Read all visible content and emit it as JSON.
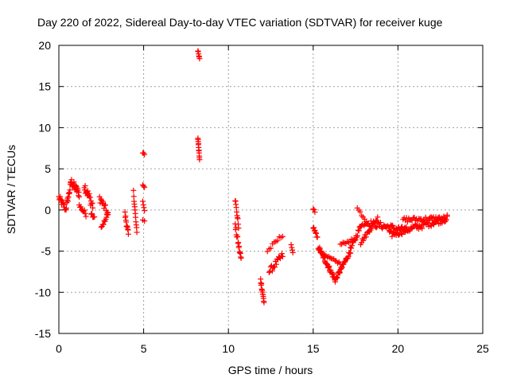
{
  "chart_data": {
    "type": "scatter",
    "title": "Day 220 of 2022, Sidereal Day-to-day VTEC variation (SDTVAR) for receiver kuge",
    "xlabel": "GPS time / hours",
    "ylabel": "SDTVAR / TECUs",
    "xlim": [
      0,
      25
    ],
    "ylim": [
      -15,
      20
    ],
    "xticks": [
      0,
      5,
      10,
      15,
      20,
      25
    ],
    "yticks": [
      -15,
      -10,
      -5,
      0,
      5,
      10,
      15,
      20
    ],
    "grid": true,
    "marker": "plus",
    "color": "#ff0000",
    "segments": [
      {
        "x0": 0.0,
        "x1": 0.35,
        "y0": 1.5,
        "y1": 0.3,
        "spread": 0.8,
        "n": 14
      },
      {
        "x0": 0.4,
        "x1": 0.7,
        "y0": 0.0,
        "y1": 3.0,
        "spread": 0.8,
        "n": 14
      },
      {
        "x0": 0.7,
        "x1": 1.2,
        "y0": 3.5,
        "y1": 2.0,
        "spread": 1.0,
        "n": 22
      },
      {
        "x0": 1.2,
        "x1": 1.6,
        "y0": 0.5,
        "y1": -0.5,
        "spread": 0.6,
        "n": 10
      },
      {
        "x0": 1.5,
        "x1": 2.0,
        "y0": 3.0,
        "y1": 0.5,
        "spread": 1.2,
        "n": 20
      },
      {
        "x0": 1.9,
        "x1": 2.1,
        "y0": -0.5,
        "y1": -1.0,
        "spread": 0.4,
        "n": 5
      },
      {
        "x0": 2.4,
        "x1": 2.9,
        "y0": 1.5,
        "y1": -0.5,
        "spread": 1.0,
        "n": 14
      },
      {
        "x0": 2.5,
        "x1": 2.9,
        "y0": -2.2,
        "y1": -0.5,
        "spread": 0.3,
        "n": 10
      },
      {
        "x0": 3.9,
        "x1": 4.1,
        "y0": -0.5,
        "y1": -3.0,
        "spread": 0.7,
        "n": 12
      },
      {
        "x0": 4.4,
        "x1": 4.6,
        "y0": 2.2,
        "y1": -2.8,
        "spread": 0.5,
        "n": 12
      },
      {
        "x0": 4.95,
        "x1": 5.05,
        "y0": 7.0,
        "y1": 6.8,
        "spread": 0.2,
        "n": 3
      },
      {
        "x0": 4.95,
        "x1": 5.05,
        "y0": 3.0,
        "y1": 2.8,
        "spread": 0.2,
        "n": 3
      },
      {
        "x0": 4.95,
        "x1": 5.05,
        "y0": 1.0,
        "y1": 0.0,
        "spread": 0.3,
        "n": 4
      },
      {
        "x0": 4.95,
        "x1": 5.05,
        "y0": -1.2,
        "y1": -1.3,
        "spread": 0.1,
        "n": 2
      },
      {
        "x0": 8.2,
        "x1": 8.3,
        "y0": 19.3,
        "y1": 18.3,
        "spread": 0.3,
        "n": 6
      },
      {
        "x0": 8.2,
        "x1": 8.3,
        "y0": 8.8,
        "y1": 6.3,
        "spread": 0.5,
        "n": 12
      },
      {
        "x0": 10.4,
        "x1": 10.6,
        "y0": 1.3,
        "y1": -2.0,
        "spread": 0.5,
        "n": 10
      },
      {
        "x0": 10.4,
        "x1": 10.75,
        "y0": -2.0,
        "y1": -6.0,
        "spread": 0.8,
        "n": 16
      },
      {
        "x0": 11.9,
        "x1": 12.1,
        "y0": -8.5,
        "y1": -11.2,
        "spread": 0.6,
        "n": 14
      },
      {
        "x0": 12.3,
        "x1": 13.2,
        "y0": -5.0,
        "y1": -3.0,
        "spread": 0.5,
        "n": 10
      },
      {
        "x0": 12.4,
        "x1": 13.2,
        "y0": -7.5,
        "y1": -5.5,
        "spread": 0.8,
        "n": 18
      },
      {
        "x0": 13.7,
        "x1": 13.8,
        "y0": -4.3,
        "y1": -5.2,
        "spread": 0.3,
        "n": 4
      },
      {
        "x0": 15.0,
        "x1": 15.1,
        "y0": 0.2,
        "y1": -0.3,
        "spread": 0.2,
        "n": 3
      },
      {
        "x0": 15.0,
        "x1": 15.25,
        "y0": -2.0,
        "y1": -3.5,
        "spread": 0.5,
        "n": 8
      },
      {
        "x0": 15.3,
        "x1": 16.3,
        "y0": -4.5,
        "y1": -8.5,
        "spread": 0.6,
        "n": 40
      },
      {
        "x0": 16.3,
        "x1": 17.2,
        "y0": -8.5,
        "y1": -5.0,
        "spread": 0.5,
        "n": 30
      },
      {
        "x0": 15.6,
        "x1": 16.6,
        "y0": -5.5,
        "y1": -6.5,
        "spread": 0.3,
        "n": 14
      },
      {
        "x0": 16.6,
        "x1": 17.5,
        "y0": -4.2,
        "y1": -3.5,
        "spread": 0.3,
        "n": 12
      },
      {
        "x0": 17.2,
        "x1": 17.9,
        "y0": -4.8,
        "y1": -1.5,
        "spread": 0.6,
        "n": 18
      },
      {
        "x0": 17.6,
        "x1": 18.2,
        "y0": 0.2,
        "y1": -1.5,
        "spread": 0.4,
        "n": 8
      },
      {
        "x0": 17.8,
        "x1": 18.8,
        "y0": -4.0,
        "y1": -1.0,
        "spread": 0.5,
        "n": 20
      },
      {
        "x0": 18.0,
        "x1": 20.5,
        "y0": -1.5,
        "y1": -2.5,
        "spread": 0.8,
        "n": 50
      },
      {
        "x0": 19.5,
        "x1": 22.9,
        "y0": -3.0,
        "y1": -1.0,
        "spread": 0.8,
        "n": 70
      },
      {
        "x0": 20.3,
        "x1": 22.9,
        "y0": -1.2,
        "y1": -1.0,
        "spread": 0.6,
        "n": 40
      }
    ]
  }
}
